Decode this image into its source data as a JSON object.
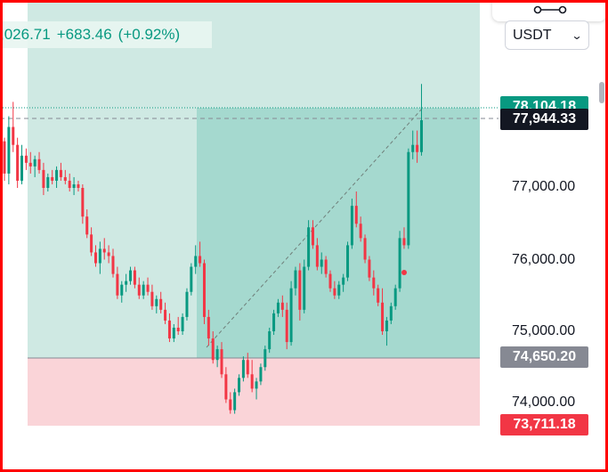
{
  "header": {
    "last_price": ",026.71",
    "change": "+683.46",
    "change_percent": "(+0.92%)"
  },
  "currency_select": {
    "value": "USDT",
    "icon": "chevron-down-icon"
  },
  "toolbar": {
    "icon": "connector-icon"
  },
  "colors": {
    "up": "#089981",
    "down": "#f23645",
    "profit_zone": "#cfe9e3",
    "profit_zone_active": "#a5d9cf",
    "loss_zone": "#fad4d8",
    "current_price_tag": "#131722",
    "entry_tag": "#868993",
    "stop_tag": "#f23645",
    "target_tag": "#089981"
  },
  "chart_data": {
    "type": "candlestick",
    "y_axis": {
      "position": "right",
      "ticks": [
        77000,
        76000,
        75000,
        74000
      ],
      "tick_labels": [
        "77,000.00",
        "76,000.00",
        "75,000.00",
        "74,000.00"
      ],
      "range": [
        73400,
        78650
      ]
    },
    "price_tags": {
      "target": "78,104.18",
      "current": "77,944.33",
      "entry": "74,650.20",
      "stop": "73,711.18"
    },
    "position_tool": {
      "kind": "long",
      "entry": 74650.2,
      "target": 78104.18,
      "stop": 73711.18
    },
    "current_price": 77944.33,
    "candles": [
      [
        77650,
        77700,
        77100,
        77200
      ],
      [
        77200,
        78000,
        77050,
        77850
      ],
      [
        77850,
        78200,
        77500,
        77600
      ],
      [
        77600,
        77700,
        77000,
        77100
      ],
      [
        77100,
        77600,
        77050,
        77450
      ],
      [
        77450,
        77550,
        77250,
        77350
      ],
      [
        77350,
        77500,
        77200,
        77300
      ],
      [
        77300,
        77450,
        77150,
        77400
      ],
      [
        77400,
        77500,
        77200,
        77250
      ],
      [
        77250,
        77350,
        76900,
        77000
      ],
      [
        77000,
        77200,
        76950,
        77150
      ],
      [
        77150,
        77250,
        77050,
        77100
      ],
      [
        77100,
        77300,
        77000,
        77250
      ],
      [
        77250,
        77350,
        77100,
        77150
      ],
      [
        77150,
        77250,
        77050,
        77100
      ],
      [
        77100,
        77200,
        76950,
        77000
      ],
      [
        77000,
        77150,
        76900,
        77050
      ],
      [
        77050,
        77100,
        76950,
        77000
      ],
      [
        77000,
        77050,
        76500,
        76600
      ],
      [
        76600,
        76700,
        76300,
        76350
      ],
      [
        76350,
        76450,
        76050,
        76100
      ],
      [
        76100,
        76200,
        75900,
        75950
      ],
      [
        75950,
        76250,
        75800,
        76150
      ],
      [
        76150,
        76300,
        76000,
        76100
      ],
      [
        76100,
        76200,
        75950,
        76050
      ],
      [
        76050,
        76150,
        75750,
        75800
      ],
      [
        75800,
        75900,
        75450,
        75500
      ],
      [
        75500,
        75700,
        75400,
        75650
      ],
      [
        75650,
        75800,
        75550,
        75700
      ],
      [
        75700,
        75900,
        75650,
        75850
      ],
      [
        75850,
        75900,
        75600,
        75650
      ],
      [
        75650,
        75750,
        75450,
        75500
      ],
      [
        75500,
        75700,
        75450,
        75650
      ],
      [
        75650,
        75750,
        75500,
        75550
      ],
      [
        75550,
        75650,
        75300,
        75350
      ],
      [
        75350,
        75500,
        75250,
        75450
      ],
      [
        75450,
        75550,
        75250,
        75300
      ],
      [
        75300,
        75400,
        75100,
        75150
      ],
      [
        75150,
        75250,
        74850,
        74900
      ],
      [
        74900,
        75100,
        74850,
        75050
      ],
      [
        75050,
        75200,
        74950,
        75000
      ],
      [
        75000,
        75250,
        74950,
        75200
      ],
      [
        75200,
        75600,
        75150,
        75550
      ],
      [
        75550,
        75950,
        75500,
        75900
      ],
      [
        75900,
        76200,
        75800,
        76050
      ],
      [
        76050,
        76250,
        75900,
        75950
      ],
      [
        75950,
        76000,
        75100,
        75200
      ],
      [
        75200,
        75300,
        74800,
        74900
      ],
      [
        74900,
        75000,
        74550,
        74600
      ],
      [
        74600,
        74800,
        74500,
        74750
      ],
      [
        74750,
        74850,
        74350,
        74400
      ],
      [
        74400,
        74500,
        74000,
        74050
      ],
      [
        74050,
        74150,
        73850,
        73900
      ],
      [
        73900,
        74200,
        73850,
        74150
      ],
      [
        74150,
        74400,
        74100,
        74350
      ],
      [
        74350,
        74650,
        74300,
        74600
      ],
      [
        74600,
        74700,
        74350,
        74400
      ],
      [
        74400,
        74600,
        74150,
        74200
      ],
      [
        74200,
        74350,
        74050,
        74300
      ],
      [
        74300,
        74550,
        74250,
        74500
      ],
      [
        74500,
        74800,
        74450,
        74750
      ],
      [
        74750,
        75050,
        74700,
        75000
      ],
      [
        75000,
        75300,
        74950,
        75250
      ],
      [
        75250,
        75450,
        75200,
        75400
      ],
      [
        75400,
        75500,
        75200,
        75300
      ],
      [
        75300,
        75400,
        74750,
        74850
      ],
      [
        74850,
        75700,
        74800,
        75600
      ],
      [
        75600,
        75900,
        75500,
        75850
      ],
      [
        75850,
        75950,
        75150,
        75300
      ],
      [
        75300,
        76000,
        75250,
        75900
      ],
      [
        75900,
        76550,
        75850,
        76450
      ],
      [
        76450,
        76550,
        76150,
        76200
      ],
      [
        76200,
        76300,
        75850,
        75900
      ],
      [
        75900,
        76100,
        75800,
        76000
      ],
      [
        76000,
        76050,
        75750,
        75800
      ],
      [
        75800,
        75850,
        75550,
        75600
      ],
      [
        75600,
        75700,
        75450,
        75500
      ],
      [
        75500,
        75700,
        75450,
        75650
      ],
      [
        75650,
        75800,
        75550,
        75750
      ],
      [
        75750,
        76250,
        75700,
        76200
      ],
      [
        76200,
        76850,
        76150,
        76750
      ],
      [
        76750,
        76950,
        76450,
        76500
      ],
      [
        76500,
        76600,
        76250,
        76300
      ],
      [
        76300,
        76350,
        75950,
        76000
      ],
      [
        76000,
        76050,
        75700,
        75750
      ],
      [
        75750,
        75850,
        75500,
        75600
      ],
      [
        75600,
        75650,
        75350,
        75400
      ],
      [
        75400,
        75600,
        74950,
        75000
      ],
      [
        75000,
        75200,
        74800,
        75150
      ],
      [
        75150,
        75400,
        75100,
        75350
      ],
      [
        75350,
        75650,
        75300,
        75600
      ],
      [
        75600,
        76400,
        75550,
        76300
      ],
      [
        76300,
        76450,
        76150,
        76200
      ],
      [
        76200,
        77550,
        76150,
        77500
      ],
      [
        77500,
        77800,
        77400,
        77600
      ],
      [
        77600,
        77800,
        77350,
        77500
      ],
      [
        77500,
        78450,
        77450,
        77944.33
      ]
    ]
  }
}
